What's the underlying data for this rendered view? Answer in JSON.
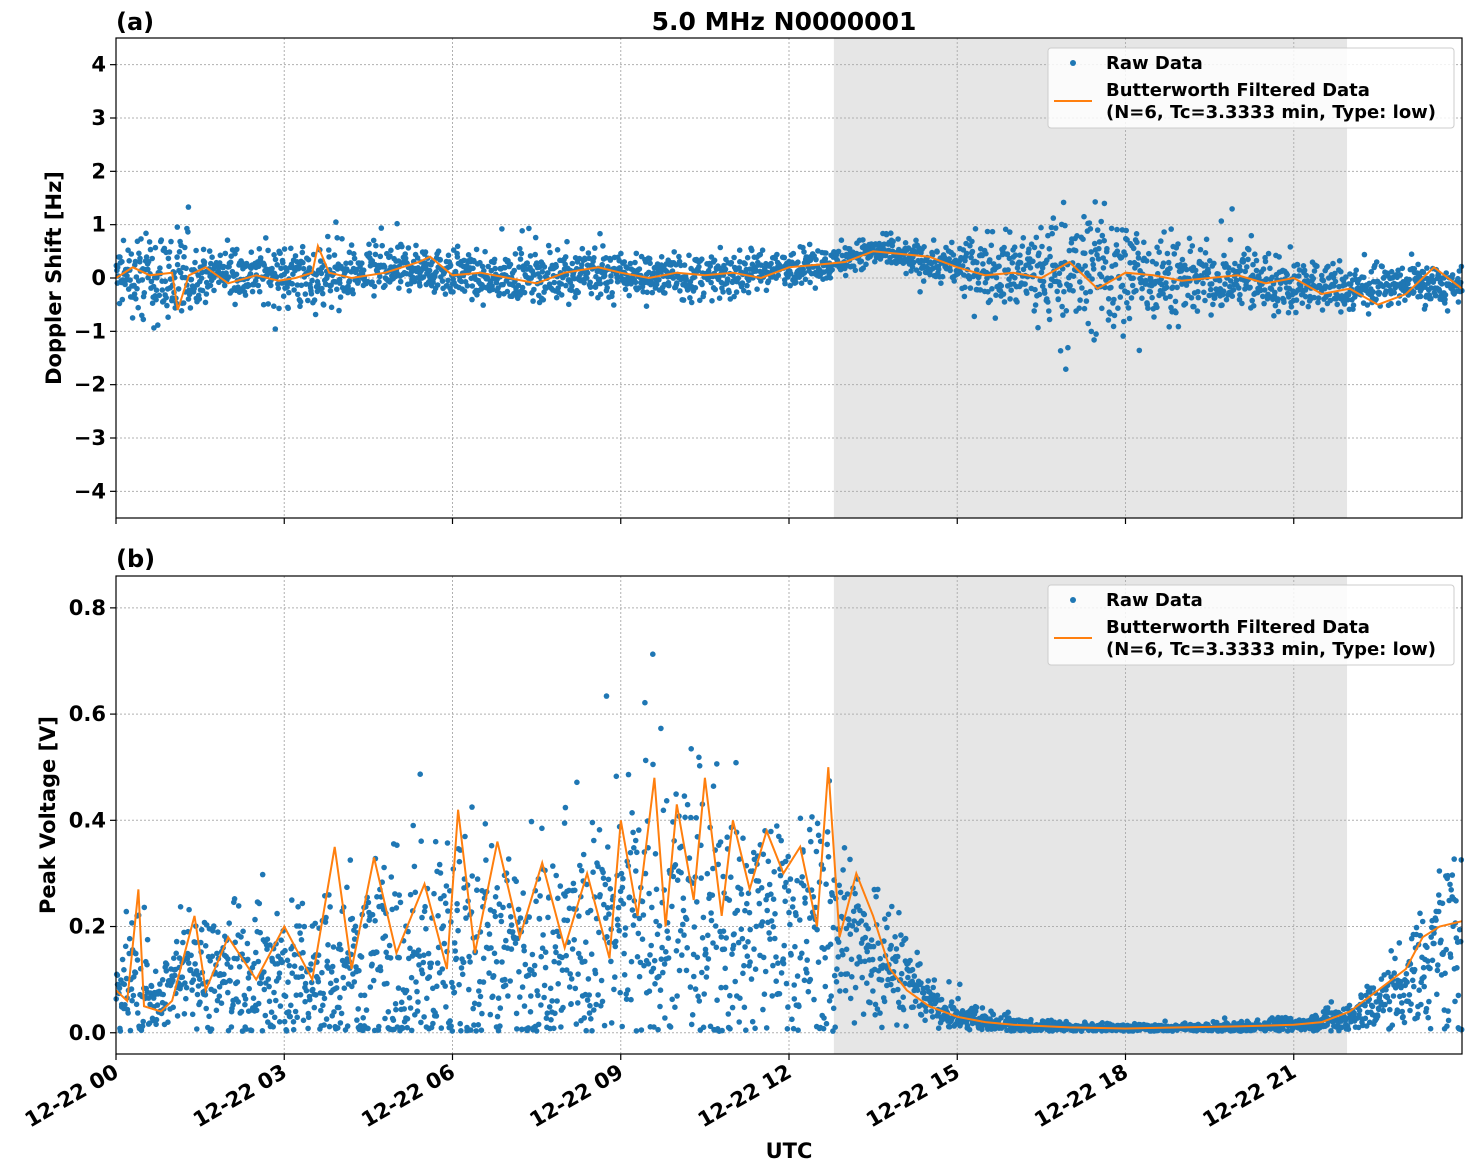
{
  "chart_data": [
    {
      "type": "scatter",
      "panel_label": "(a)",
      "title": "5.0 MHz N0000001",
      "ylabel": "Doppler Shift [Hz]",
      "xlabel": "",
      "ylim": [
        -4.5,
        4.5
      ],
      "yticks": [
        4,
        3,
        2,
        1,
        0,
        -1,
        -2,
        -3,
        -4
      ],
      "ytick_labels": [
        "4",
        "3",
        "2",
        "1",
        "0",
        "−1",
        "−2",
        "−3",
        "−4"
      ],
      "xlim_hours": [
        0,
        24
      ],
      "shaded_hours": [
        12.8,
        21.95
      ],
      "grid": true,
      "legend": {
        "position": "top-right",
        "entries": [
          {
            "label": "Raw Data",
            "kind": "dot",
            "color": "#1f77b4"
          },
          {
            "label": "Butterworth Filtered Data",
            "label2": "(N=6, Tc=3.3333 min, Type: low)",
            "kind": "line",
            "color": "#ff7f0e"
          }
        ]
      },
      "series": [
        {
          "name": "Raw Data",
          "color": "#1f77b4",
          "hours": [
            0,
            1.2,
            1.5,
            2.5,
            3.4,
            4.5,
            5.5,
            6.5,
            8.5,
            10.5,
            12,
            12.8,
            13.5,
            14,
            15,
            16,
            17,
            18,
            19,
            20,
            21,
            22,
            23,
            24
          ],
          "center": [
            0,
            0,
            0.1,
            0.1,
            0,
            0.1,
            0.2,
            0,
            0.1,
            0,
            0.2,
            0.3,
            0.5,
            0.4,
            0.2,
            0.1,
            0.1,
            0.1,
            0,
            0,
            -0.1,
            -0.2,
            -0.1,
            -0.2
          ],
          "spread": [
            0.8,
            1.6,
            0.6,
            0.8,
            0.9,
            0.7,
            0.6,
            0.6,
            0.7,
            0.6,
            0.5,
            0.4,
            0.4,
            0.4,
            0.6,
            1.2,
            1.8,
            1.6,
            1.0,
            0.8,
            0.8,
            0.7,
            0.5,
            0.5
          ]
        },
        {
          "name": "Butterworth Filtered Data",
          "color": "#ff7f0e",
          "hours": [
            0,
            0.3,
            0.6,
            1.0,
            1.1,
            1.3,
            1.6,
            2.0,
            2.5,
            2.9,
            3.2,
            3.5,
            3.6,
            3.8,
            4.2,
            4.8,
            5.4,
            5.6,
            6.0,
            6.5,
            7.0,
            7.5,
            8.0,
            8.6,
            9.0,
            9.5,
            10.0,
            10.5,
            11.0,
            11.5,
            12.0,
            12.5,
            13.0,
            13.5,
            14.0,
            14.5,
            15.0,
            15.5,
            16.0,
            16.5,
            17.0,
            17.5,
            18.0,
            18.5,
            19.0,
            19.5,
            20.0,
            20.5,
            21.0,
            21.5,
            22.0,
            22.5,
            23.0,
            23.5,
            24.0
          ],
          "values": [
            0,
            0.2,
            0.05,
            0.1,
            -0.6,
            0.05,
            0.2,
            -0.1,
            0.05,
            -0.05,
            0,
            0.1,
            0.6,
            0.1,
            0,
            0.1,
            0.3,
            0.4,
            0.05,
            0.1,
            0,
            -0.1,
            0.1,
            0.2,
            0.1,
            0,
            0.1,
            0.05,
            0.1,
            0,
            0.2,
            0.25,
            0.3,
            0.5,
            0.45,
            0.4,
            0.2,
            0.05,
            0.1,
            0,
            0.3,
            -0.2,
            0.1,
            0.05,
            -0.05,
            0,
            0.05,
            -0.1,
            0,
            -0.3,
            -0.2,
            -0.5,
            -0.3,
            0.2,
            -0.2
          ]
        }
      ]
    },
    {
      "type": "scatter",
      "panel_label": "(b)",
      "title": "",
      "ylabel": "Peak Voltage [V]",
      "xlabel": "UTC",
      "ylim": [
        -0.04,
        0.86
      ],
      "yticks": [
        0.8,
        0.6,
        0.4,
        0.2,
        0.0
      ],
      "ytick_labels": [
        "0.8",
        "0.6",
        "0.4",
        "0.2",
        "0.0"
      ],
      "xlim_hours": [
        0,
        24
      ],
      "xticks_hours": [
        0,
        3,
        6,
        9,
        12,
        15,
        18,
        21
      ],
      "xtick_labels": [
        "12-22 00",
        "12-22 03",
        "12-22 06",
        "12-22 09",
        "12-22 12",
        "12-22 15",
        "12-22 18",
        "12-22 21"
      ],
      "shaded_hours": [
        12.8,
        21.95
      ],
      "grid": true,
      "legend": {
        "position": "top-right",
        "entries": [
          {
            "label": "Raw Data",
            "kind": "dot",
            "color": "#1f77b4"
          },
          {
            "label": "Butterworth Filtered Data",
            "label2": "(N=6, Tc=3.3333 min, Type: low)",
            "kind": "line",
            "color": "#ff7f0e"
          }
        ]
      },
      "series": [
        {
          "name": "Raw Data",
          "color": "#1f77b4",
          "hours": [
            0,
            0.4,
            0.7,
            1.2,
            2.0,
            3.0,
            4.0,
            5.0,
            6.0,
            7.0,
            8.0,
            9.0,
            10.0,
            11.0,
            12.0,
            12.7,
            13.3,
            14.0,
            14.5,
            15.0,
            16.0,
            17.0,
            18.0,
            19.0,
            20.0,
            21.0,
            22.0,
            22.5,
            23.0,
            23.5,
            24.0
          ],
          "center": [
            0.08,
            0.1,
            0.05,
            0.12,
            0.12,
            0.1,
            0.12,
            0.14,
            0.16,
            0.17,
            0.17,
            0.2,
            0.22,
            0.22,
            0.22,
            0.2,
            0.17,
            0.12,
            0.06,
            0.03,
            0.015,
            0.01,
            0.008,
            0.008,
            0.01,
            0.015,
            0.03,
            0.06,
            0.1,
            0.14,
            0.17
          ],
          "spread": [
            0.08,
            0.25,
            0.05,
            0.15,
            0.18,
            0.2,
            0.25,
            0.3,
            0.35,
            0.3,
            0.3,
            0.4,
            0.4,
            0.35,
            0.35,
            0.35,
            0.25,
            0.12,
            0.06,
            0.04,
            0.02,
            0.015,
            0.012,
            0.012,
            0.015,
            0.02,
            0.04,
            0.08,
            0.15,
            0.2,
            0.3
          ]
        },
        {
          "name": "Butterworth Filtered Data",
          "color": "#ff7f0e",
          "hours": [
            0,
            0.2,
            0.4,
            0.5,
            0.8,
            1.0,
            1.4,
            1.6,
            2.0,
            2.5,
            3.0,
            3.5,
            3.9,
            4.2,
            4.6,
            5.0,
            5.5,
            5.9,
            6.1,
            6.4,
            6.8,
            7.2,
            7.6,
            8.0,
            8.4,
            8.8,
            9.0,
            9.3,
            9.6,
            9.8,
            10.0,
            10.3,
            10.5,
            10.8,
            11.0,
            11.3,
            11.6,
            11.9,
            12.2,
            12.5,
            12.7,
            12.9,
            13.2,
            13.5,
            13.8,
            14.1,
            14.5,
            15.0,
            15.5,
            16.0,
            17.0,
            18.0,
            19.0,
            20.0,
            21.0,
            21.5,
            22.0,
            22.5,
            23.0,
            23.3,
            23.6,
            24.0
          ],
          "values": [
            0.08,
            0.06,
            0.27,
            0.05,
            0.04,
            0.06,
            0.22,
            0.08,
            0.18,
            0.1,
            0.2,
            0.1,
            0.35,
            0.12,
            0.33,
            0.15,
            0.28,
            0.12,
            0.42,
            0.15,
            0.36,
            0.18,
            0.32,
            0.16,
            0.3,
            0.14,
            0.4,
            0.22,
            0.48,
            0.2,
            0.43,
            0.25,
            0.48,
            0.22,
            0.4,
            0.27,
            0.38,
            0.3,
            0.35,
            0.2,
            0.5,
            0.18,
            0.3,
            0.22,
            0.12,
            0.08,
            0.05,
            0.03,
            0.02,
            0.015,
            0.01,
            0.008,
            0.01,
            0.012,
            0.015,
            0.02,
            0.04,
            0.08,
            0.12,
            0.18,
            0.2,
            0.21
          ]
        }
      ]
    }
  ]
}
